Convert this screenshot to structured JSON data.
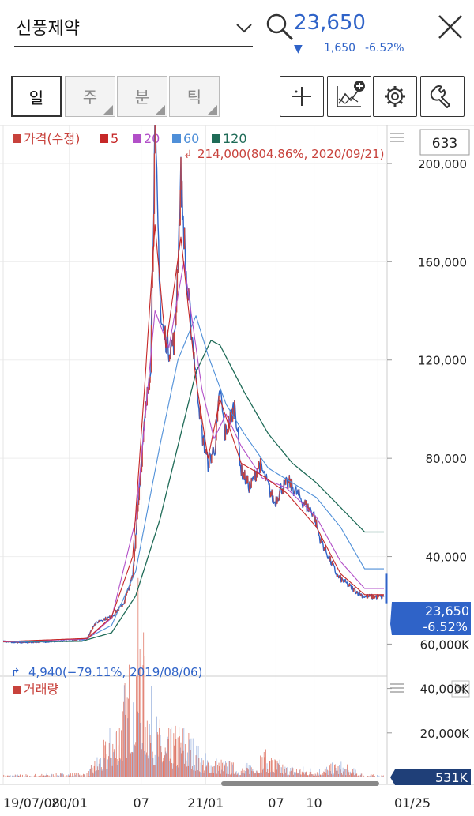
{
  "header": {
    "stock_name": "신풍제약",
    "price": "23,650",
    "change": "1,650",
    "change_pct": "-6.52%"
  },
  "toolbar": {
    "tabs": [
      "일",
      "주",
      "분",
      "틱"
    ],
    "active_tab": 0
  },
  "colors": {
    "price": "#c8423c",
    "ma5": "#c62828",
    "ma20": "#b24fc8",
    "ma60": "#4f8fd8",
    "ma120": "#1f6b57",
    "down": "#2f63c8",
    "volume": "#e07a6a"
  },
  "chart_data": [
    {
      "type": "line",
      "legend": [
        {
          "name": "가격(수정)",
          "color": "#c8423c"
        },
        {
          "name": "5",
          "color": "#c62828"
        },
        {
          "name": "20",
          "color": "#b24fc8"
        },
        {
          "name": "60",
          "color": "#4f8fd8"
        },
        {
          "name": "120",
          "color": "#1f6b57"
        }
      ],
      "count_badge": "633",
      "high_label": "214,000(804.86%, 2020/09/21)",
      "low_label": "4,940(−79.11%, 2019/08/06)",
      "current_label": {
        "price": "23,650",
        "pct": "-6.52%"
      },
      "ylim": [
        0,
        214000
      ],
      "yticks": [
        {
          "v": 200000,
          "label": "200,000"
        },
        {
          "v": 160000,
          "label": "160,000"
        },
        {
          "v": 120000,
          "label": "120,000"
        },
        {
          "v": 80000,
          "label": "80,000"
        },
        {
          "v": 40000,
          "label": "40,000"
        }
      ],
      "xticks": [
        {
          "i": 0,
          "label": "19/07/08"
        },
        {
          "i": 110,
          "label": "20/01"
        },
        {
          "i": 229,
          "label": "07"
        },
        {
          "i": 336,
          "label": "21/01"
        },
        {
          "i": 453,
          "label": "07"
        },
        {
          "i": 516,
          "label": "10"
        },
        {
          "i": 622,
          "label": "01/25"
        }
      ],
      "n_points": 633,
      "price_keypoints": [
        [
          0,
          5500
        ],
        [
          25,
          4940
        ],
        [
          60,
          5200
        ],
        [
          110,
          5600
        ],
        [
          140,
          6800
        ],
        [
          150,
          12000
        ],
        [
          160,
          14000
        ],
        [
          180,
          15500
        ],
        [
          200,
          21000
        ],
        [
          215,
          32000
        ],
        [
          225,
          65000
        ],
        [
          235,
          95000
        ],
        [
          245,
          120000
        ],
        [
          252,
          214000
        ],
        [
          262,
          135000
        ],
        [
          275,
          125000
        ],
        [
          285,
          128000
        ],
        [
          295,
          195000
        ],
        [
          305,
          150000
        ],
        [
          318,
          120000
        ],
        [
          330,
          90000
        ],
        [
          340,
          78000
        ],
        [
          352,
          85000
        ],
        [
          360,
          108000
        ],
        [
          368,
          90000
        ],
        [
          385,
          102000
        ],
        [
          395,
          75000
        ],
        [
          410,
          68000
        ],
        [
          425,
          78000
        ],
        [
          435,
          72000
        ],
        [
          450,
          62000
        ],
        [
          462,
          68000
        ],
        [
          475,
          70000
        ],
        [
          490,
          65000
        ],
        [
          505,
          60000
        ],
        [
          515,
          58000
        ],
        [
          525,
          48000
        ],
        [
          540,
          40000
        ],
        [
          555,
          32000
        ],
        [
          570,
          29000
        ],
        [
          585,
          26000
        ],
        [
          600,
          23650
        ]
      ],
      "ma120_keypoints": [
        [
          0,
          5300
        ],
        [
          130,
          5500
        ],
        [
          180,
          9000
        ],
        [
          220,
          24000
        ],
        [
          260,
          55000
        ],
        [
          290,
          85000
        ],
        [
          320,
          115000
        ],
        [
          345,
          128000
        ],
        [
          360,
          126000
        ],
        [
          400,
          107000
        ],
        [
          440,
          90000
        ],
        [
          480,
          78000
        ],
        [
          520,
          70000
        ],
        [
          560,
          60000
        ],
        [
          600,
          50000
        ]
      ],
      "ma60_keypoints": [
        [
          0,
          5300
        ],
        [
          130,
          5700
        ],
        [
          180,
          12000
        ],
        [
          220,
          34000
        ],
        [
          260,
          85000
        ],
        [
          290,
          120000
        ],
        [
          320,
          138000
        ],
        [
          340,
          122000
        ],
        [
          370,
          102000
        ],
        [
          400,
          90000
        ],
        [
          440,
          76000
        ],
        [
          480,
          70000
        ],
        [
          520,
          64000
        ],
        [
          560,
          52000
        ],
        [
          600,
          35000
        ]
      ],
      "ma20_keypoints": [
        [
          0,
          5300
        ],
        [
          140,
          6500
        ],
        [
          180,
          15000
        ],
        [
          220,
          55000
        ],
        [
          252,
          140000
        ],
        [
          275,
          125000
        ],
        [
          300,
          160000
        ],
        [
          330,
          108000
        ],
        [
          350,
          88000
        ],
        [
          370,
          98000
        ],
        [
          395,
          85000
        ],
        [
          430,
          72000
        ],
        [
          470,
          68000
        ],
        [
          520,
          56000
        ],
        [
          560,
          38000
        ],
        [
          600,
          27000
        ]
      ],
      "ma5_keypoints": [
        [
          0,
          5400
        ],
        [
          140,
          6700
        ],
        [
          180,
          15500
        ],
        [
          215,
          40000
        ],
        [
          235,
          110000
        ],
        [
          252,
          175000
        ],
        [
          270,
          125000
        ],
        [
          295,
          170000
        ],
        [
          320,
          112000
        ],
        [
          340,
          80000
        ],
        [
          360,
          104000
        ],
        [
          395,
          78000
        ],
        [
          430,
          73000
        ],
        [
          470,
          66000
        ],
        [
          520,
          52000
        ],
        [
          560,
          33000
        ],
        [
          600,
          24500
        ]
      ]
    },
    {
      "type": "bar",
      "name": "거래량",
      "color": "#e07a6a",
      "ylim": [
        0,
        70000
      ],
      "yticks": [
        {
          "v": 60000,
          "label": "60,000K"
        },
        {
          "v": 40000,
          "label": "40,000K"
        },
        {
          "v": 20000,
          "label": "20,000K"
        }
      ],
      "current_label": "531K",
      "volume_keypoints": [
        [
          0,
          800
        ],
        [
          140,
          1500
        ],
        [
          170,
          12000
        ],
        [
          195,
          25000
        ],
        [
          215,
          45000
        ],
        [
          225,
          60000
        ],
        [
          235,
          40000
        ],
        [
          250,
          22000
        ],
        [
          270,
          14000
        ],
        [
          300,
          18000
        ],
        [
          330,
          8000
        ],
        [
          360,
          6000
        ],
        [
          400,
          3500
        ],
        [
          430,
          9000
        ],
        [
          470,
          4000
        ],
        [
          520,
          3000
        ],
        [
          560,
          5000
        ],
        [
          600,
          900
        ]
      ]
    }
  ]
}
